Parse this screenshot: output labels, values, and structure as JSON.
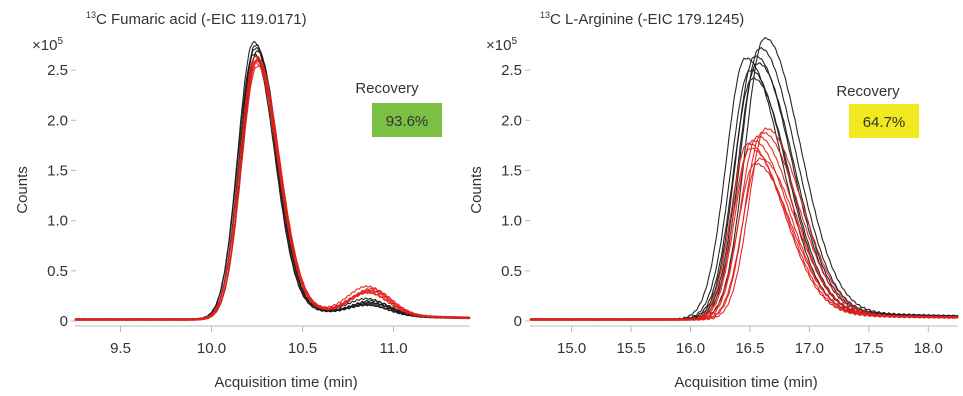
{
  "chart_data": [
    {
      "type": "line",
      "title_sup": "13",
      "title": "C Fumaric acid (-EIC  119.0171)",
      "xlabel": "Acquisition time (min)",
      "ylabel": "Counts",
      "y_multiplier": "×10",
      "y_multiplier_exp": "5",
      "xlim": [
        9.25,
        11.42
      ],
      "ylim": [
        0,
        2.8
      ],
      "x_ticks": [
        9.5,
        10.0,
        10.5,
        11.0
      ],
      "x_tick_labels": [
        "9.5",
        "10.0",
        "10.5",
        "11.0"
      ],
      "y_ticks": [
        0,
        0.5,
        1.0,
        1.5,
        2.0,
        2.5
      ],
      "y_tick_labels": [
        "0",
        "0.5",
        "1.0",
        "1.5",
        "2.0",
        "2.5"
      ],
      "recovery_label": "Recovery",
      "recovery_value": "93.6%",
      "recovery_color": "#7cbf45",
      "series_groups": [
        {
          "color": "#1a1a1a",
          "count": 6,
          "peak_x": [
            10.23,
            10.24,
            10.24,
            10.25,
            10.23,
            10.24
          ],
          "peak_y": [
            2.76,
            2.73,
            2.7,
            2.67,
            2.64,
            2.62
          ],
          "width_l": 0.085,
          "width_r": 0.115,
          "tail": 0.48,
          "bump": 0.1
        },
        {
          "color": "#e0211b",
          "count": 6,
          "peak_x": [
            10.24,
            10.25,
            10.24,
            10.25,
            10.24,
            10.25
          ],
          "peak_y": [
            2.62,
            2.6,
            2.58,
            2.57,
            2.55,
            2.52
          ],
          "width_l": 0.085,
          "width_r": 0.12,
          "tail": 0.5,
          "bump": 0.22
        }
      ]
    },
    {
      "type": "line",
      "title_sup": "13",
      "title": "C L-Arginine (-EIC 179.1245)",
      "xlabel": "Acquisition time (min)",
      "ylabel": "Counts",
      "y_multiplier": "×10",
      "y_multiplier_exp": "5",
      "xlim": [
        14.65,
        18.25
      ],
      "ylim": [
        0,
        2.8
      ],
      "x_ticks": [
        15.0,
        15.5,
        16.0,
        16.5,
        17.0,
        17.5,
        18.0
      ],
      "x_tick_labels": [
        "15.0",
        "15.5",
        "16.0",
        "16.5",
        "17.0",
        "17.5",
        "18.0"
      ],
      "y_ticks": [
        0,
        0.5,
        1.0,
        1.5,
        2.0,
        2.5
      ],
      "y_tick_labels": [
        "0",
        "0.5",
        "1.0",
        "1.5",
        "2.0",
        "2.5"
      ],
      "recovery_label": "Recovery",
      "recovery_value": "64.7%",
      "recovery_color": "#f2e81f",
      "series_groups": [
        {
          "color": "#1a1a1a",
          "count": 7,
          "peak_x": [
            16.46,
            16.5,
            16.54,
            16.58,
            16.62,
            16.56,
            16.52
          ],
          "peak_y": [
            2.6,
            2.48,
            2.62,
            2.7,
            2.8,
            2.55,
            2.4
          ],
          "width_l": 0.16,
          "width_r": 0.3,
          "tail": 0.35,
          "bump": 0
        },
        {
          "color": "#e0211b",
          "count": 8,
          "peak_x": [
            16.48,
            16.52,
            16.56,
            16.6,
            16.63,
            16.58,
            16.54,
            16.5
          ],
          "peak_y": [
            1.75,
            1.78,
            1.82,
            1.86,
            1.9,
            1.6,
            1.55,
            1.7
          ],
          "width_l": 0.14,
          "width_r": 0.3,
          "tail": 0.35,
          "bump": 0
        }
      ]
    }
  ]
}
